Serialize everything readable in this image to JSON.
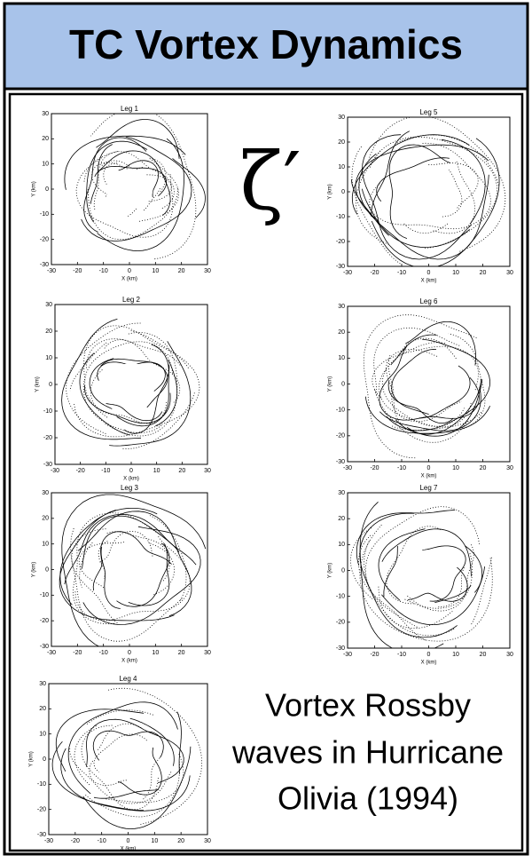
{
  "header": {
    "title": "TC Vortex Dynamics"
  },
  "symbol": "ζ′",
  "caption": [
    "Vortex Rossby",
    "waves in Hurricane",
    "Olivia (1994)"
  ],
  "axes": {
    "x_label": "X (km)",
    "y_label": "Y (km)",
    "ticks": [
      -30,
      -20,
      -10,
      0,
      10,
      20,
      30
    ]
  },
  "panels": [
    {
      "title": "Leg 1"
    },
    {
      "title": "Leg 2"
    },
    {
      "title": "Leg 3"
    },
    {
      "title": "Leg 4"
    },
    {
      "title": "Leg 5"
    },
    {
      "title": "Leg 6"
    },
    {
      "title": "Leg 7"
    }
  ]
}
